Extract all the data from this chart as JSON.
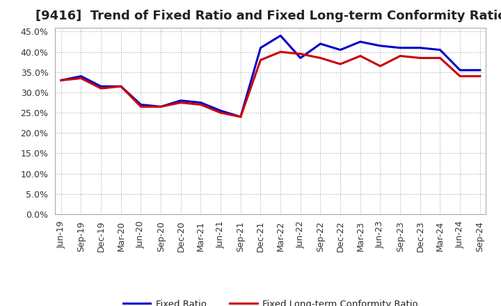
{
  "title": "[9416]  Trend of Fixed Ratio and Fixed Long-term Conformity Ratio",
  "x_labels": [
    "Jun-19",
    "Sep-19",
    "Dec-19",
    "Mar-20",
    "Jun-20",
    "Sep-20",
    "Dec-20",
    "Mar-21",
    "Jun-21",
    "Sep-21",
    "Dec-21",
    "Mar-22",
    "Jun-22",
    "Sep-22",
    "Dec-22",
    "Mar-23",
    "Jun-23",
    "Sep-23",
    "Dec-23",
    "Mar-24",
    "Jun-24",
    "Sep-24"
  ],
  "fixed_ratio": [
    33.0,
    34.0,
    31.5,
    31.5,
    27.0,
    26.5,
    28.0,
    27.5,
    25.5,
    24.0,
    41.0,
    44.0,
    38.5,
    42.0,
    40.5,
    42.5,
    41.5,
    41.0,
    41.0,
    40.5,
    35.5,
    35.5
  ],
  "fixed_lt_ratio": [
    33.0,
    33.5,
    31.0,
    31.5,
    26.5,
    26.5,
    27.5,
    27.0,
    25.0,
    24.0,
    38.0,
    40.0,
    39.5,
    38.5,
    37.0,
    39.0,
    36.5,
    39.0,
    38.5,
    38.5,
    34.0,
    34.0
  ],
  "fixed_ratio_color": "#0000cc",
  "fixed_lt_ratio_color": "#cc0000",
  "ylim": [
    0,
    46
  ],
  "yticks": [
    0.0,
    5.0,
    10.0,
    15.0,
    20.0,
    25.0,
    30.0,
    35.0,
    40.0,
    45.0
  ],
  "background_color": "#ffffff",
  "plot_bg_color": "#ffffff",
  "grid_color": "#aaaaaa",
  "border_color": "#aaaaaa",
  "legend_fixed_ratio": "Fixed Ratio",
  "legend_fixed_lt_ratio": "Fixed Long-term Conformity Ratio",
  "title_fontsize": 13,
  "tick_fontsize": 9,
  "line_width": 2.2
}
